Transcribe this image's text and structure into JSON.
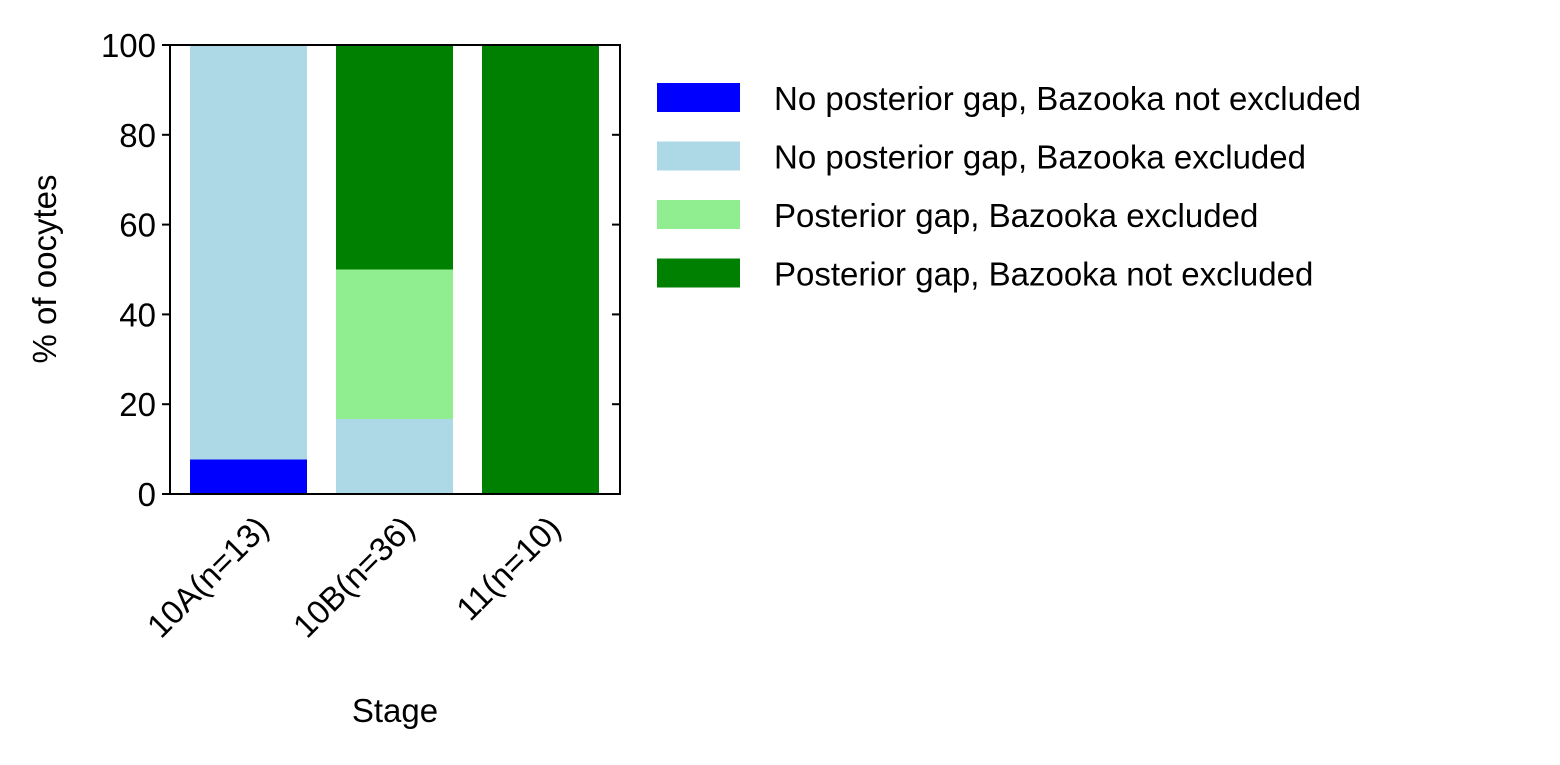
{
  "chart_data": {
    "type": "bar",
    "stacked": true,
    "categories": [
      "10A(n=13)",
      "10B(n=36)",
      "11(n=10)"
    ],
    "series": [
      {
        "name": "No posterior gap, Bazooka not excluded",
        "color": "#0000ff",
        "values": [
          7.7,
          0,
          0
        ]
      },
      {
        "name": "No posterior gap, Bazooka excluded",
        "color": "#add8e6",
        "values": [
          92.3,
          16.7,
          0
        ]
      },
      {
        "name": "Posterior gap, Bazooka excluded",
        "color": "#90ee90",
        "values": [
          0,
          33.3,
          0
        ]
      },
      {
        "name": "Posterior gap, Bazooka not excluded",
        "color": "#008000",
        "values": [
          0,
          50.0,
          100
        ]
      }
    ],
    "xlabel": "Stage",
    "ylabel": "% of oocytes",
    "ylim": [
      0,
      100
    ],
    "yticks": [
      "0",
      "20",
      "40",
      "60",
      "80",
      "100"
    ],
    "grid": false,
    "legend_position": "right-outside"
  }
}
